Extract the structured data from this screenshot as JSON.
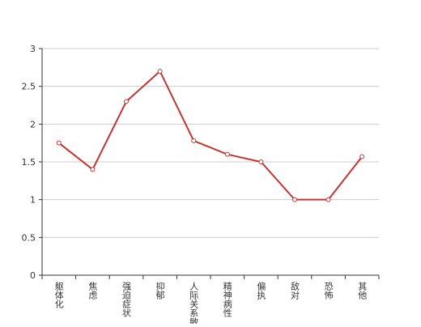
{
  "chart_data": {
    "type": "line",
    "categories": [
      "躯体化",
      "焦虑",
      "强迫症状",
      "抑郁",
      "人际关系敏感",
      "精神病性",
      "偏执",
      "敌对",
      "恐怖",
      "其他"
    ],
    "values": [
      1.75,
      1.4,
      2.3,
      2.7,
      1.78,
      1.6,
      1.5,
      1.0,
      1.0,
      1.57
    ],
    "color": "#c23531",
    "ylim": [
      0,
      3
    ],
    "yticks": [
      0,
      0.5,
      1,
      1.5,
      2,
      2.5,
      3
    ],
    "grid": true
  }
}
